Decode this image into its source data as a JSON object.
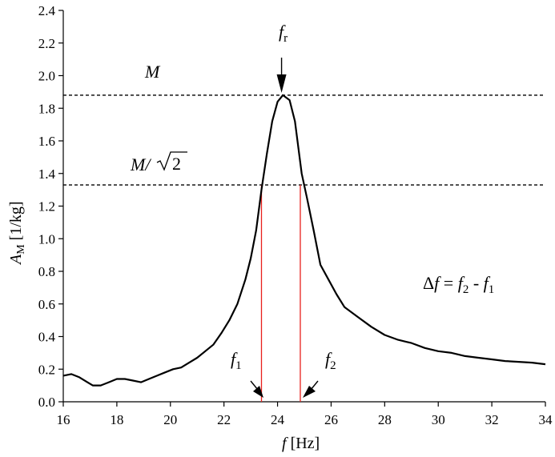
{
  "chart_data": {
    "type": "line",
    "xlabel_symbol": "f",
    "xlabel_unit": " [Hz]",
    "ylabel_symbol": "A",
    "ylabel_sub": "M",
    "ylabel_unit": " [1/kg]",
    "xlim": [
      16,
      34
    ],
    "ylim": [
      0,
      2.4
    ],
    "x_ticks": [
      16,
      18,
      20,
      22,
      24,
      26,
      28,
      30,
      32,
      34
    ],
    "y_ticks": [
      0.0,
      0.2,
      0.4,
      0.6,
      0.8,
      1.0,
      1.2,
      1.4,
      1.6,
      1.8,
      2.0,
      2.2,
      2.4
    ],
    "x_tick_labels": [
      "16",
      "18",
      "20",
      "22",
      "24",
      "26",
      "28",
      "30",
      "32",
      "34"
    ],
    "y_tick_labels": [
      "0.0",
      "0.2",
      "0.4",
      "0.6",
      "0.8",
      "1.0",
      "1.2",
      "1.4",
      "1.6",
      "1.8",
      "2.0",
      "2.2",
      "2.4"
    ],
    "grid": false,
    "series": [
      {
        "color": "#000000",
        "x": [
          16.0,
          16.3,
          16.6,
          16.9,
          17.1,
          17.4,
          17.7,
          18.0,
          18.3,
          18.6,
          18.9,
          19.2,
          19.5,
          19.8,
          20.1,
          20.4,
          20.7,
          21.0,
          21.3,
          21.6,
          21.9,
          22.2,
          22.5,
          22.8,
          23.0,
          23.2,
          23.4,
          23.6,
          23.8,
          24.0,
          24.2,
          24.45,
          24.65,
          24.9,
          25.1,
          25.35,
          25.6,
          25.9,
          26.2,
          26.5,
          27.0,
          27.5,
          28.0,
          28.5,
          29.0,
          29.5,
          30.0,
          30.5,
          31.0,
          31.5,
          32.0,
          32.5,
          33.0,
          33.5,
          34.0
        ],
        "y": [
          0.16,
          0.17,
          0.15,
          0.12,
          0.1,
          0.1,
          0.12,
          0.14,
          0.14,
          0.13,
          0.12,
          0.14,
          0.16,
          0.18,
          0.2,
          0.21,
          0.24,
          0.27,
          0.31,
          0.35,
          0.42,
          0.5,
          0.6,
          0.75,
          0.88,
          1.05,
          1.3,
          1.52,
          1.72,
          1.84,
          1.88,
          1.85,
          1.72,
          1.4,
          1.25,
          1.05,
          0.84,
          0.75,
          0.66,
          0.58,
          0.52,
          0.46,
          0.41,
          0.38,
          0.36,
          0.33,
          0.31,
          0.3,
          0.28,
          0.27,
          0.26,
          0.25,
          0.245,
          0.24,
          0.23
        ]
      }
    ],
    "reference_lines": [
      {
        "y": 1.88,
        "label": "M",
        "style": "dashed"
      },
      {
        "y": 1.33,
        "label_main": "M/",
        "label_root": "2",
        "style": "dashed"
      }
    ],
    "markers": {
      "fr": {
        "x": 24.15,
        "label": "f",
        "sub": "r"
      },
      "f1": {
        "x": 23.4,
        "label": "f",
        "sub": "1",
        "line_color": "#e8201c"
      },
      "f2": {
        "x": 24.85,
        "label": "f",
        "sub": "2",
        "line_color": "#e8201c"
      }
    },
    "formula": {
      "delta": "Δ",
      "f": "f",
      "eq": " = ",
      "f2": "f",
      "sub2": "2",
      "minus": " - ",
      "f1": "f",
      "sub1": "1"
    }
  }
}
